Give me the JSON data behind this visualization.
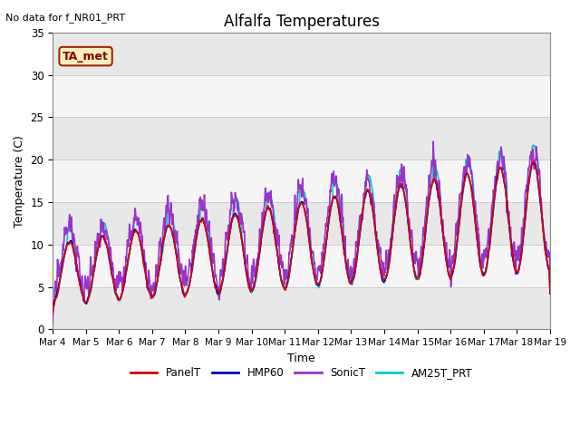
{
  "title": "Alfalfa Temperatures",
  "top_left_text": "No data for f_NR01_PRT",
  "legend_box_label": "TA_met",
  "xlabel": "Time",
  "ylabel": "Temperature (C)",
  "ylim": [
    0,
    35
  ],
  "x_tick_labels": [
    "Mar 4",
    "Mar 5",
    "Mar 6",
    "Mar 7",
    "Mar 8",
    "Mar 9",
    "Mar 10",
    "Mar 11",
    "Mar 12",
    "Mar 13",
    "Mar 14",
    "Mar 15",
    "Mar 16",
    "Mar 17",
    "Mar 18",
    "Mar 19"
  ],
  "series_colors": {
    "PanelT": "#dd0000",
    "HMP60": "#0000cc",
    "SonicT": "#9933cc",
    "AM25T_PRT": "#00cccc"
  },
  "legend_box_bg": "#f5f0c0",
  "legend_box_edge": "#aa2200",
  "fig_bg_color": "#ffffff",
  "plot_bg_color": "#ffffff",
  "band_colors": [
    "#e8e8e8",
    "#f5f5f5"
  ],
  "grid_line_color": "#cccccc"
}
